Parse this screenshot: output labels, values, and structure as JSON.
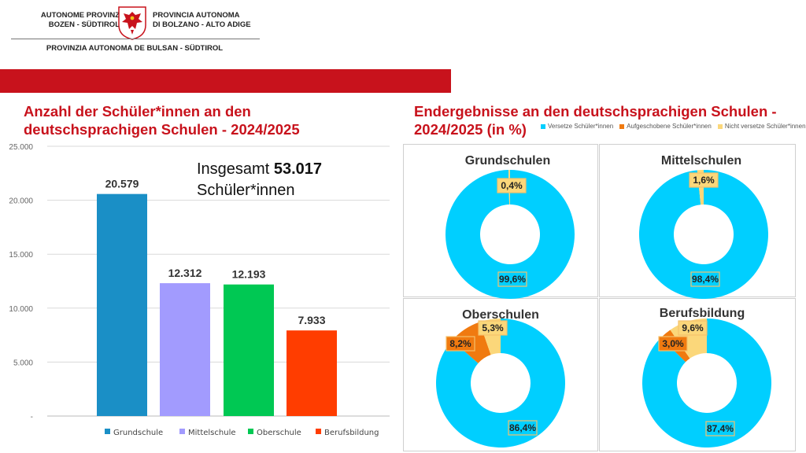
{
  "header": {
    "de_line1": "AUTONOME PROVINZ",
    "de_line2": "BOZEN - SÜDTIROL",
    "it_line1": "PROVINCIA AUTONOMA",
    "it_line2": "DI BOLZANO - ALTO ADIGE",
    "lad_line": "PROVINZIA AUTONOMA DE BULSAN - SÜDTIROL",
    "coat_of_arms_icon": "eagle-coat-of-arms-icon",
    "band_color": "#c8121c"
  },
  "left": {
    "title_line1": "Anzahl der Schüler*innen an den",
    "title_line2": "deutschsprachigen Schulen - 2024/2025",
    "annotation_prefix": "Insgesamt ",
    "annotation_total": "53.017",
    "annotation_line2": "Schüler*innen"
  },
  "right": {
    "title_line1": "Endergebnisse an den deutschsprachigen Schulen -",
    "title_line2": "2024/2025 (in %)"
  },
  "chart_data": [
    {
      "type": "bar",
      "categories": [
        "Grundschule",
        "Mittelschule",
        "Oberschule",
        "Berufsbildung"
      ],
      "values": [
        20579,
        12312,
        12193,
        7933
      ],
      "value_labels": [
        "20.579",
        "12.312",
        "12.193",
        "7.933"
      ],
      "colors": [
        "#1a8fc6",
        "#a29bfe",
        "#00c853",
        "#ff3d00"
      ],
      "ylim": [
        0,
        25000
      ],
      "y_ticks": [
        0,
        5000,
        10000,
        15000,
        20000,
        25000
      ],
      "y_tick_labels": [
        "-",
        "5.000",
        "10.000",
        "15.000",
        "20.000",
        "25.000"
      ],
      "grid": true,
      "legend": "bottom"
    },
    {
      "type": "pie",
      "donut": true,
      "legend": [
        "Versetze Schüler*innen",
        "Aufgeschobene Schüler*innen",
        "Nicht versetze Schüler*innen"
      ],
      "colors": [
        "#00cfff",
        "#f07a10",
        "#fbd77a"
      ],
      "legend_position": "top",
      "charts": [
        {
          "title": "Grundschulen",
          "values": [
            99.6,
            0,
            0.4
          ],
          "labels": [
            "99,6%",
            "",
            "0,4%"
          ]
        },
        {
          "title": "Mittelschulen",
          "values": [
            98.4,
            0,
            1.6
          ],
          "labels": [
            "98,4%",
            "",
            "1,6%"
          ]
        },
        {
          "title": "Oberschulen",
          "values": [
            86.4,
            8.2,
            5.3
          ],
          "labels": [
            "86,4%",
            "8,2%",
            "5,3%"
          ]
        },
        {
          "title": "Berufsbildung",
          "values": [
            87.4,
            3.0,
            9.6
          ],
          "labels": [
            "87,4%",
            "3,0%",
            "9,6%"
          ]
        }
      ]
    }
  ]
}
